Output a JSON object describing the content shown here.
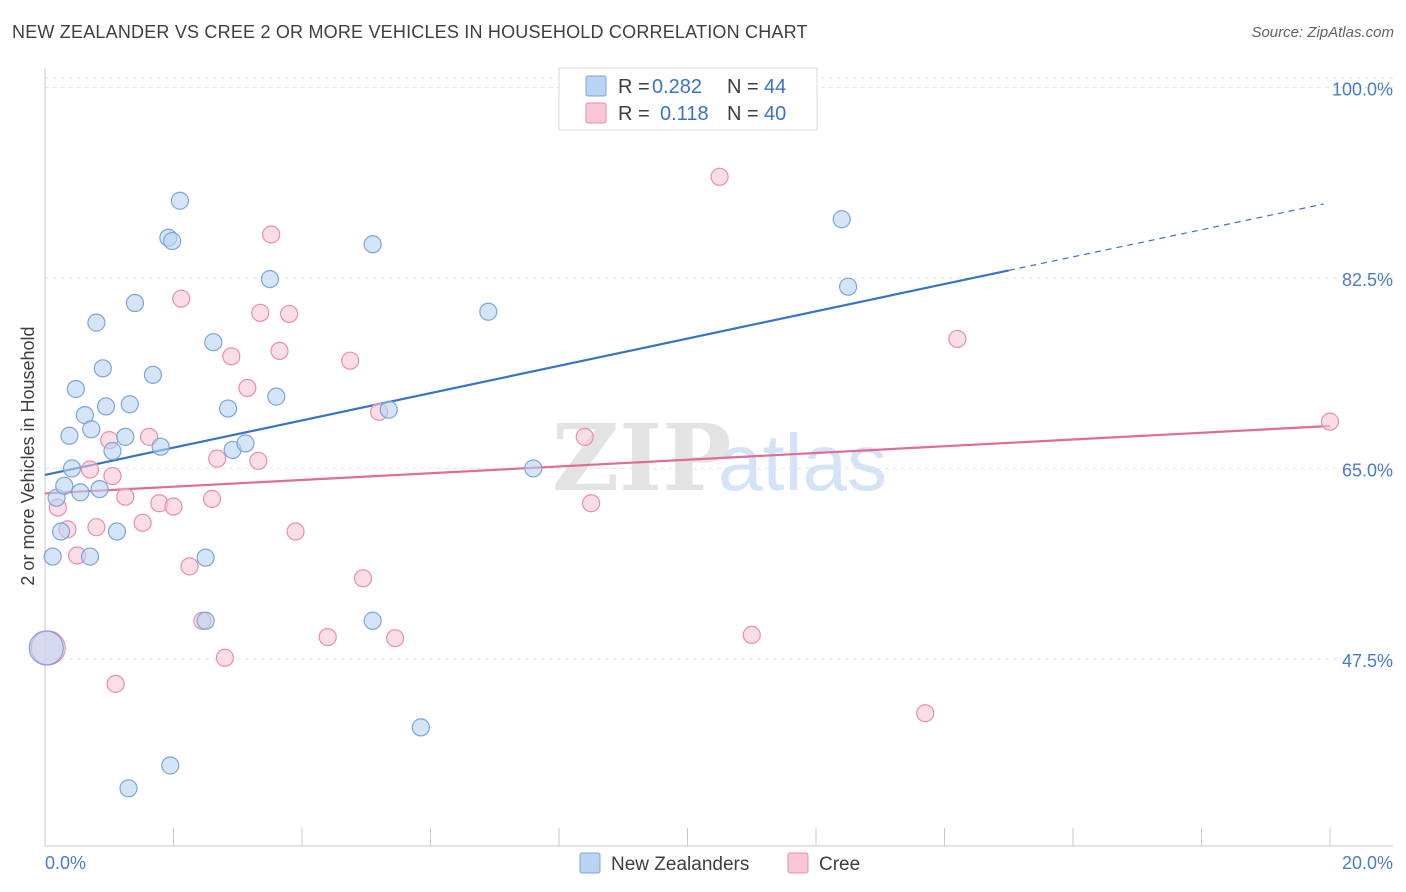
{
  "title": "NEW ZEALANDER VS CREE 2 OR MORE VEHICLES IN HOUSEHOLD CORRELATION CHART",
  "source": "Source: ZipAtlas.com",
  "watermark": {
    "zip": "ZIP",
    "atlas": "atlas"
  },
  "colors": {
    "blue_fill": "#b9d3f2",
    "blue_stroke": "#7aa6dd",
    "blue_line": "#3a72c8",
    "pink_fill": "#f8c6d6",
    "pink_stroke": "#e98fae",
    "pink_line": "#e06c98",
    "grid": "#e3e3e3",
    "axis_label": "#4a7cc7"
  },
  "legend": {
    "rows": [
      {
        "r_label": "R =",
        "r_value": "0.282",
        "n_label": "N =",
        "n_value": "44"
      },
      {
        "r_label": "R =",
        "r_value": "0.118",
        "n_label": "N =",
        "n_value": "40"
      }
    ]
  },
  "bottom_legend": [
    "New Zealanders",
    "Cree"
  ],
  "chart_data": {
    "type": "scatter",
    "title": "NEW ZEALANDER VS CREE 2 OR MORE VEHICLES IN HOUSEHOLD CORRELATION CHART",
    "xlabel": "",
    "ylabel": "2 or more Vehicles in Household",
    "xlim": [
      0,
      20
    ],
    "ylim": [
      30.3,
      101.8
    ],
    "x_tick_labels": [
      "0.0%",
      "20.0%"
    ],
    "y_ticks": [
      47.5,
      65.0,
      82.5,
      100.0
    ],
    "y_tick_labels": [
      "47.5%",
      "65.0%",
      "82.5%",
      "100.0%"
    ],
    "series": [
      {
        "name": "New Zealanders",
        "R": 0.282,
        "N": 44,
        "trend": {
          "x0": 0,
          "y0": 64.4,
          "x1": 15,
          "y1": 83.2,
          "dash_to_x": 19.9,
          "dash_to_y": 89.3
        },
        "points": [
          [
            0.02,
            48.5
          ],
          [
            0.12,
            56.9
          ],
          [
            0.18,
            62.3
          ],
          [
            0.25,
            59.2
          ],
          [
            0.3,
            63.4
          ],
          [
            0.38,
            68.0
          ],
          [
            0.42,
            65.0
          ],
          [
            0.48,
            72.3
          ],
          [
            0.55,
            62.8
          ],
          [
            0.62,
            69.9
          ],
          [
            0.7,
            56.9
          ],
          [
            0.72,
            68.6
          ],
          [
            0.8,
            78.4
          ],
          [
            0.85,
            63.1
          ],
          [
            0.9,
            74.2
          ],
          [
            0.95,
            70.7
          ],
          [
            1.05,
            66.6
          ],
          [
            1.12,
            59.2
          ],
          [
            1.25,
            67.9
          ],
          [
            1.32,
            70.9
          ],
          [
            1.4,
            80.2
          ],
          [
            1.68,
            73.6
          ],
          [
            1.8,
            67.0
          ],
          [
            1.92,
            86.2
          ],
          [
            1.98,
            85.9
          ],
          [
            2.1,
            89.6
          ],
          [
            2.5,
            51.0
          ],
          [
            2.5,
            56.8
          ],
          [
            2.62,
            76.6
          ],
          [
            2.85,
            70.5
          ],
          [
            2.92,
            66.7
          ],
          [
            3.12,
            67.3
          ],
          [
            3.5,
            82.4
          ],
          [
            3.6,
            71.6
          ],
          [
            5.1,
            85.6
          ],
          [
            5.1,
            51.0
          ],
          [
            5.35,
            70.4
          ],
          [
            5.85,
            41.2
          ],
          [
            6.9,
            79.4
          ],
          [
            7.6,
            65.0
          ],
          [
            12.4,
            87.9
          ],
          [
            12.5,
            81.7
          ],
          [
            1.3,
            35.6
          ],
          [
            1.95,
            37.7
          ]
        ]
      },
      {
        "name": "Cree",
        "R": 0.118,
        "N": 40,
        "trend": {
          "x0": 0,
          "y0": 62.7,
          "x1": 20,
          "y1": 68.9
        },
        "points": [
          [
            0.05,
            48.5
          ],
          [
            0.2,
            61.4
          ],
          [
            0.35,
            59.4
          ],
          [
            0.5,
            57.0
          ],
          [
            0.7,
            64.9
          ],
          [
            0.8,
            59.6
          ],
          [
            1.0,
            67.6
          ],
          [
            1.05,
            64.3
          ],
          [
            1.1,
            45.2
          ],
          [
            1.25,
            62.4
          ],
          [
            1.52,
            60.0
          ],
          [
            1.62,
            67.9
          ],
          [
            1.78,
            61.8
          ],
          [
            2.0,
            61.5
          ],
          [
            2.12,
            80.6
          ],
          [
            2.25,
            56.0
          ],
          [
            2.45,
            51.0
          ],
          [
            2.6,
            62.2
          ],
          [
            2.68,
            65.9
          ],
          [
            2.8,
            47.6
          ],
          [
            2.9,
            75.3
          ],
          [
            3.15,
            72.4
          ],
          [
            3.32,
            65.7
          ],
          [
            3.35,
            79.3
          ],
          [
            3.52,
            86.5
          ],
          [
            3.65,
            75.8
          ],
          [
            3.8,
            79.2
          ],
          [
            3.9,
            59.2
          ],
          [
            4.4,
            49.5
          ],
          [
            4.75,
            74.9
          ],
          [
            4.95,
            54.9
          ],
          [
            5.2,
            70.2
          ],
          [
            5.45,
            49.4
          ],
          [
            8.4,
            67.9
          ],
          [
            8.5,
            61.8
          ],
          [
            10.5,
            91.8
          ],
          [
            11.0,
            49.7
          ],
          [
            13.7,
            42.5
          ],
          [
            14.2,
            76.9
          ],
          [
            20.0,
            69.3
          ]
        ]
      }
    ]
  }
}
